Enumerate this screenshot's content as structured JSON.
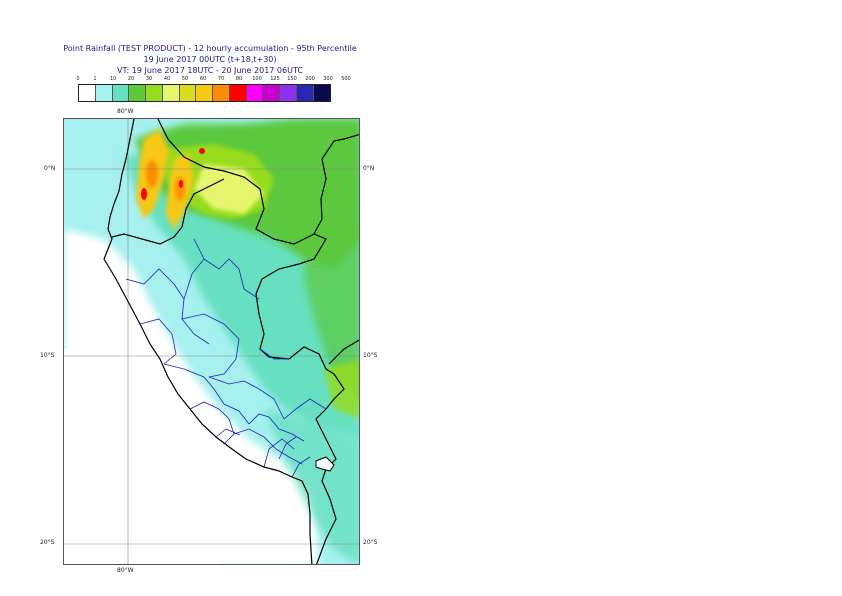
{
  "title": {
    "line1": "Point Rainfall (TEST PRODUCT) - 12 hourly accumulation - 95th Percentile",
    "line2": "19 June 2017 00UTC (t+18,t+30)",
    "line3": "VT: 19 June 2017 18UTC - 20 June 2017 06UTC"
  },
  "legend": {
    "labels": [
      "0",
      "1",
      "10",
      "20",
      "30",
      "40",
      "50",
      "60",
      "70",
      "80",
      "100",
      "125",
      "150",
      "200",
      "300",
      "500"
    ],
    "colors": [
      "#ffffff",
      "#a6f0f0",
      "#66e0c0",
      "#5cc83c",
      "#96dc1e",
      "#e6f56e",
      "#dcdc1e",
      "#f5c814",
      "#ff8c00",
      "#ff0000",
      "#ff00ff",
      "#c800d2",
      "#8c32f5",
      "#2828b4",
      "#0a0a50"
    ]
  },
  "map": {
    "lon_label_top": "80°W",
    "lon_label_bottom": "80°W",
    "lat_labels_left": [
      "0°N",
      "10°S",
      "20°S"
    ],
    "lat_labels_right": [
      "0°N",
      "10°S",
      "20°S"
    ]
  }
}
